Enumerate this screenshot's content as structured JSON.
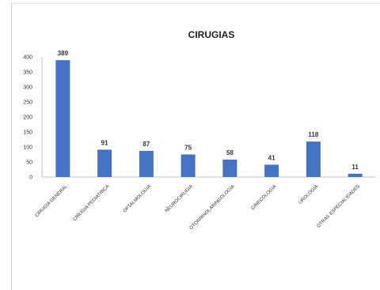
{
  "chart_data": {
    "type": "bar",
    "title": "CIRUGIAS",
    "xlabel": "",
    "ylabel": "",
    "ylim": [
      0,
      400
    ],
    "yticks": [
      0,
      50,
      100,
      150,
      200,
      250,
      300,
      350,
      400
    ],
    "grid": false,
    "legend": "none",
    "bar_color": "#4472C4",
    "categories": [
      "CIRUGIA GENERAL",
      "CIRUGIA PEDIATRICA",
      "OFTALMOLOGIA",
      "NEUROCIRUGIA",
      "OTORRINOLARINGOLOGIA",
      "GINECOLOGIA",
      "UROLOGIA",
      "OTRAS ESPECIALIDADES"
    ],
    "values": [
      389,
      91,
      87,
      75,
      58,
      41,
      118,
      11
    ]
  }
}
